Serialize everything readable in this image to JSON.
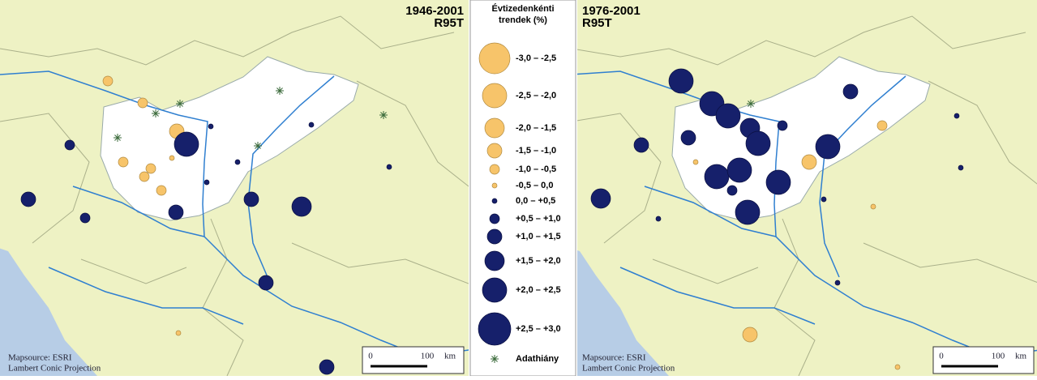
{
  "maps": [
    {
      "period": "1946-2001",
      "index": "R95T",
      "source": "Mapsource: ESRI",
      "projection": "Lambert Conic Projection",
      "scale": {
        "start": "0",
        "end": "100",
        "unit": "km"
      }
    },
    {
      "period": "1976-2001",
      "index": "R95T",
      "source": "Mapsource: ESRI",
      "projection": "Lambert Conic Projection",
      "scale": {
        "start": "0",
        "end": "100",
        "unit": "km"
      }
    }
  ],
  "legend": {
    "title": [
      "Évtizedenkénti",
      "trendek (%)"
    ],
    "classes": [
      "-3,0 – -2,5",
      "-2,5 – -2,0",
      "-2,0 – -1,5",
      "-1,5 – -1,0",
      "-1,0 – -0,5",
      "-0,5 – 0,0",
      "0,0 – +0,5",
      "+0,5 – +1,0",
      "+1,0 – +1,5",
      "+1,5 – +2,0",
      "+2,0 – +2,5",
      "+2,5 – +3,0"
    ],
    "missing": "Adathiány"
  }
}
